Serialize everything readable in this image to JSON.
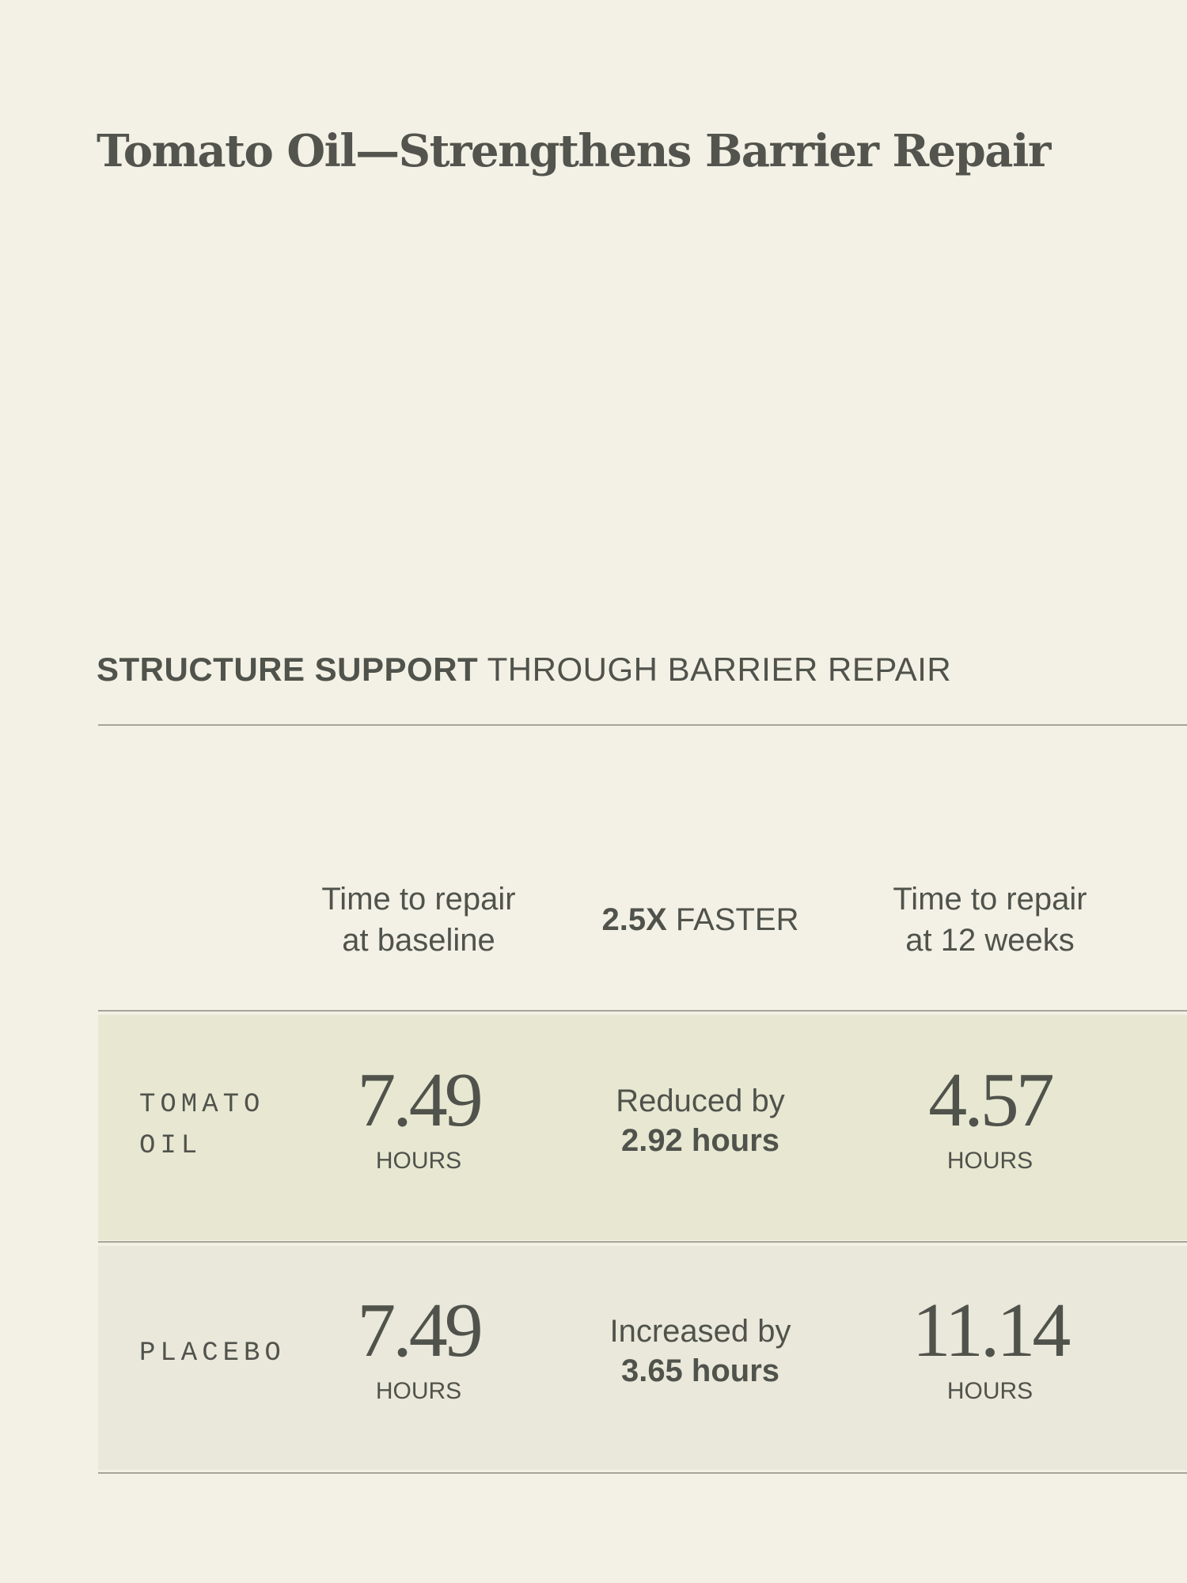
{
  "title": "Tomato Oil—Strengthens Barrier Repair",
  "subtitle": {
    "bold": "STRUCTURE SUPPORT",
    "rest": "THROUGH BARRIER REPAIR"
  },
  "headers": {
    "baseline": [
      "Time to repair",
      "at baseline"
    ],
    "change_bold": "2.5X",
    "change_rest": "FASTER",
    "weeks12": [
      "Time to repair",
      "at 12 weeks"
    ]
  },
  "rows": [
    {
      "label": [
        "TOMATO",
        "OIL"
      ],
      "baseline": "7.49",
      "baseline_unit": "HOURS",
      "change_text": "Reduced by",
      "change_value": "2.92 hours",
      "week12": "4.57",
      "week12_unit": "HOURS",
      "bg": "#e8e8d2"
    },
    {
      "label": [
        "PLACEBO"
      ],
      "baseline": "7.49",
      "baseline_unit": "HOURS",
      "change_text": "Increased by",
      "change_value": "3.65 hours",
      "week12": "11.14",
      "week12_unit": "HOURS",
      "bg": "#eae8da"
    }
  ]
}
